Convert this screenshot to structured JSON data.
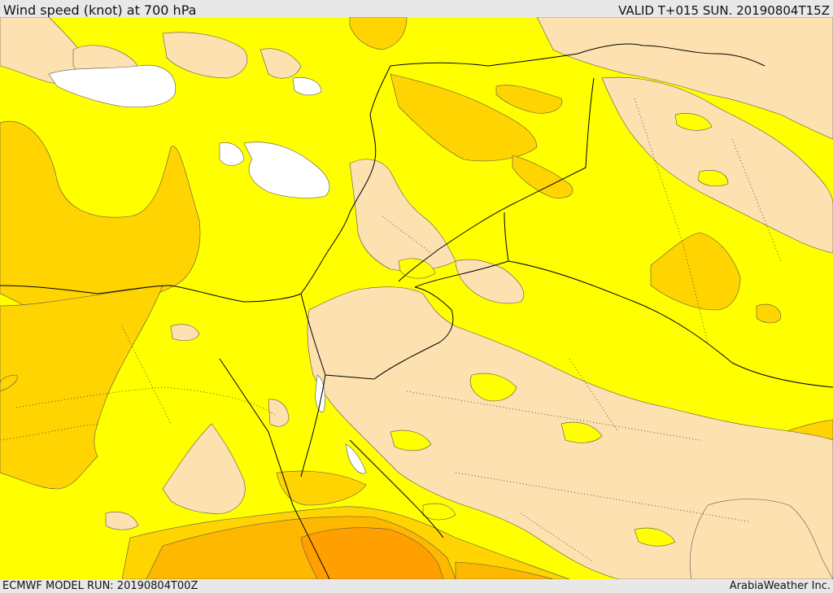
{
  "header": {
    "title": "Wind speed (knot) at 700 hPa",
    "valid": "VALID T+015 SUN. 20190804T15Z"
  },
  "footer": {
    "model_run": "ECMWF MODEL RUN: 20190804T00Z",
    "provider": "ArabiaWeather Inc."
  },
  "map": {
    "colors": {
      "lightest": "#ffffff",
      "light": "#fde1b0",
      "base": "#ffff00",
      "medium": "#ffd400",
      "strong": "#ffb800",
      "stronger": "#ffa000",
      "boundary": "#000000",
      "contour": "#444444"
    }
  }
}
